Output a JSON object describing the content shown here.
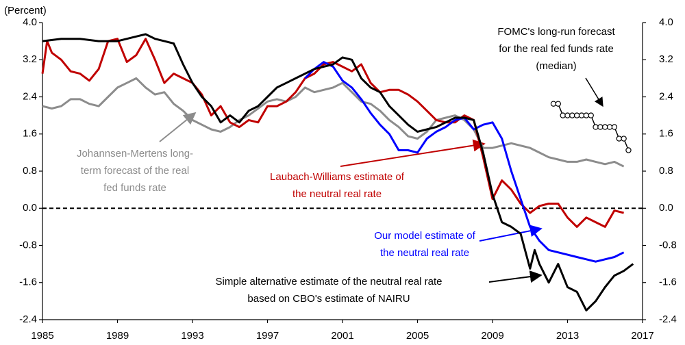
{
  "chart_data": {
    "type": "line",
    "y_label": "(Percent)",
    "xlim": [
      1985,
      2017
    ],
    "xticks": [
      1985,
      1989,
      1993,
      1997,
      2001,
      2005,
      2009,
      2013,
      2017
    ],
    "ylim": [
      -2.4,
      4.0
    ],
    "yticks": [
      {
        "value": -2.4,
        "label": "-2.4"
      },
      {
        "value": -1.6,
        "label": "-1.6"
      },
      {
        "value": -0.8,
        "label": "-0.8"
      },
      {
        "value": 0,
        "label": "0.0"
      },
      {
        "value": 0.8,
        "label": "0.8"
      },
      {
        "value": 1.6,
        "label": "1.6"
      },
      {
        "value": 2.4,
        "label": "2.4"
      },
      {
        "value": 3.2,
        "label": "3.2"
      },
      {
        "value": 4.0,
        "label": "4.0"
      }
    ],
    "y2lim": [
      -2.4,
      4.0
    ],
    "y2ticks": [
      {
        "value": -2.4,
        "label": "-2.4"
      },
      {
        "value": -1.6,
        "label": "-1.6"
      },
      {
        "value": -0.8,
        "label": "-0.8"
      },
      {
        "value": 0,
        "label": "0.0"
      },
      {
        "value": 0.8,
        "label": "0.8"
      },
      {
        "value": 1.6,
        "label": "1.6"
      },
      {
        "value": 2.4,
        "label": "2.4"
      },
      {
        "value": 3.2,
        "label": "3.2"
      },
      {
        "value": 4.0,
        "label": "4.0"
      }
    ],
    "zero_line": true,
    "series": [
      {
        "color": "#8c8c8c",
        "x": [
          1985,
          1985.5,
          1986,
          1986.5,
          1987,
          1987.5,
          1988,
          1988.5,
          1989,
          1989.5,
          1990,
          1990.5,
          1991,
          1991.5,
          1992,
          1992.5,
          1993,
          1993.5,
          1994,
          1994.5,
          1995,
          1995.5,
          1996,
          1996.5,
          1997,
          1997.5,
          1998,
          1998.5,
          1999,
          1999.5,
          2000,
          2000.5,
          2001,
          2001.5,
          2002,
          2002.5,
          2003,
          2003.5,
          2004,
          2004.5,
          2005,
          2005.5,
          2006,
          2006.5,
          2007,
          2007.5,
          2008,
          2008.5,
          2009,
          2009.5,
          2010,
          2010.5,
          2011,
          2011.5,
          2012,
          2012.5,
          2013,
          2013.5,
          2014,
          2014.5,
          2015,
          2015.5,
          2016
        ],
        "values": [
          2.2,
          2.15,
          2.2,
          2.35,
          2.35,
          2.25,
          2.2,
          2.4,
          2.6,
          2.7,
          2.8,
          2.6,
          2.45,
          2.5,
          2.25,
          2.1,
          1.9,
          1.8,
          1.7,
          1.65,
          1.75,
          1.9,
          2.0,
          2.15,
          2.3,
          2.35,
          2.3,
          2.4,
          2.6,
          2.5,
          2.55,
          2.6,
          2.7,
          2.5,
          2.3,
          2.25,
          2.1,
          1.9,
          1.75,
          1.55,
          1.5,
          1.65,
          1.9,
          1.95,
          2.0,
          1.9,
          1.7,
          1.3,
          1.3,
          1.35,
          1.4,
          1.35,
          1.3,
          1.2,
          1.1,
          1.05,
          1.0,
          1.0,
          1.05,
          1.0,
          0.95,
          1.0,
          0.9
        ]
      },
      {
        "color": "#c00000",
        "x": [
          1985,
          1985.25,
          1985.5,
          1986,
          1986.5,
          1987,
          1987.5,
          1988,
          1988.5,
          1989,
          1989.5,
          1990,
          1990.5,
          1991,
          1991.5,
          1992,
          1992.5,
          1993,
          1993.5,
          1994,
          1994.5,
          1995,
          1995.5,
          1996,
          1996.5,
          1997,
          1997.5,
          1998,
          1998.5,
          1999,
          1999.5,
          2000,
          2000.5,
          2001,
          2001.5,
          2002,
          2002.5,
          2003,
          2003.5,
          2004,
          2004.5,
          2005,
          2005.5,
          2006,
          2006.5,
          2007,
          2007.5,
          2008,
          2008.5,
          2009,
          2009.5,
          2010,
          2010.5,
          2011,
          2011.5,
          2012,
          2012.5,
          2013,
          2013.5,
          2014,
          2014.5,
          2015,
          2015.5,
          2016
        ],
        "values": [
          2.9,
          3.6,
          3.35,
          3.2,
          2.95,
          2.9,
          2.75,
          3.0,
          3.6,
          3.65,
          3.15,
          3.3,
          3.65,
          3.2,
          2.7,
          2.9,
          2.8,
          2.7,
          2.45,
          2.0,
          2.2,
          1.85,
          1.75,
          1.9,
          1.85,
          2.2,
          2.2,
          2.3,
          2.5,
          2.8,
          2.9,
          3.1,
          3.15,
          3.05,
          2.95,
          3.1,
          2.7,
          2.5,
          2.55,
          2.55,
          2.45,
          2.3,
          2.1,
          1.9,
          1.85,
          1.85,
          2.0,
          1.9,
          1.1,
          0.2,
          0.6,
          0.4,
          0.1,
          -0.1,
          0.05,
          0.1,
          0.1,
          -0.2,
          -0.4,
          -0.2,
          -0.3,
          -0.4,
          -0.05,
          -0.1
        ]
      },
      {
        "color": "#0000ff",
        "x": [
          1999,
          1999.5,
          2000,
          2000.5,
          2001,
          2001.5,
          2002,
          2002.5,
          2003,
          2003.5,
          2004,
          2004.5,
          2005,
          2005.5,
          2006,
          2006.5,
          2007,
          2007.5,
          2008,
          2008.5,
          2009,
          2009.5,
          2010,
          2010.5,
          2011,
          2011.5,
          2012,
          2012.5,
          2013,
          2013.5,
          2014,
          2014.5,
          2015,
          2015.5,
          2016
        ],
        "values": [
          2.8,
          3.0,
          3.15,
          3.05,
          2.75,
          2.6,
          2.35,
          2.05,
          1.8,
          1.6,
          1.25,
          1.25,
          1.2,
          1.5,
          1.65,
          1.75,
          1.9,
          1.95,
          1.7,
          1.8,
          1.85,
          1.5,
          0.8,
          0.2,
          -0.4,
          -0.7,
          -0.9,
          -0.95,
          -1.0,
          -1.05,
          -1.1,
          -1.15,
          -1.1,
          -1.05,
          -0.95
        ]
      },
      {
        "color": "#000000",
        "x": [
          1985,
          1986,
          1987,
          1988,
          1989,
          1989.5,
          1990,
          1990.5,
          1991,
          1991.5,
          1992,
          1992.5,
          1993,
          1993.5,
          1994,
          1994.5,
          1995,
          1995.5,
          1996,
          1996.5,
          1997,
          1997.5,
          1998,
          1998.5,
          1999,
          1999.5,
          2000,
          2000.5,
          2001,
          2001.5,
          2002,
          2002.5,
          2003,
          2003.5,
          2004,
          2004.5,
          2005,
          2005.5,
          2006,
          2006.5,
          2007,
          2007.5,
          2008,
          2008.5,
          2009,
          2009.5,
          2010,
          2010.5,
          2011,
          2011.25,
          2011.5,
          2012,
          2012.5,
          2013,
          2013.5,
          2014,
          2014.5,
          2015,
          2015.5,
          2016,
          2016.5
        ],
        "values": [
          3.6,
          3.65,
          3.65,
          3.6,
          3.6,
          3.65,
          3.7,
          3.75,
          3.65,
          3.6,
          3.55,
          3.1,
          2.7,
          2.4,
          2.2,
          1.85,
          2.0,
          1.85,
          2.1,
          2.2,
          2.4,
          2.6,
          2.7,
          2.8,
          2.9,
          3.0,
          3.05,
          3.1,
          3.25,
          3.2,
          2.8,
          2.6,
          2.5,
          2.2,
          2.0,
          1.8,
          1.65,
          1.7,
          1.75,
          1.85,
          1.95,
          1.95,
          1.9,
          1.2,
          0.3,
          -0.3,
          -0.4,
          -0.55,
          -1.3,
          -0.9,
          -1.2,
          -1.6,
          -1.2,
          -1.7,
          -1.8,
          -2.2,
          -2.0,
          -1.7,
          -1.45,
          -1.35,
          -1.2
        ]
      },
      {
        "color": "#000000",
        "markers": true,
        "x": [
          2012.25,
          2012.5,
          2012.75,
          2013,
          2013.25,
          2013.5,
          2013.75,
          2014,
          2014.25,
          2014.5,
          2014.75,
          2015,
          2015.25,
          2015.5,
          2015.75,
          2016,
          2016.25
        ],
        "values": [
          2.25,
          2.25,
          2.0,
          2.0,
          2.0,
          2.0,
          2.0,
          2.0,
          2.0,
          1.75,
          1.75,
          1.75,
          1.75,
          1.75,
          1.5,
          1.5,
          1.25
        ]
      }
    ],
    "annotations": [
      {
        "color": "#000000",
        "lines": [
          "FOMC's long-run forecast",
          "for the real fed funds rate",
          "(median)"
        ]
      },
      {
        "color": "#8c8c8c",
        "lines": [
          "Johannsen-Mertens long-",
          "term forecast of the real",
          "fed funds rate"
        ]
      },
      {
        "color": "#c00000",
        "lines": [
          "Laubach-Williams estimate of",
          "the neutral real rate"
        ]
      },
      {
        "color": "#0000ff",
        "lines": [
          "Our model estimate of",
          "the neutral real rate"
        ]
      },
      {
        "color": "#000000",
        "lines": [
          "Simple alternative estimate of the neutral real rate",
          "based on CBO's estimate of NAIRU"
        ]
      }
    ]
  }
}
